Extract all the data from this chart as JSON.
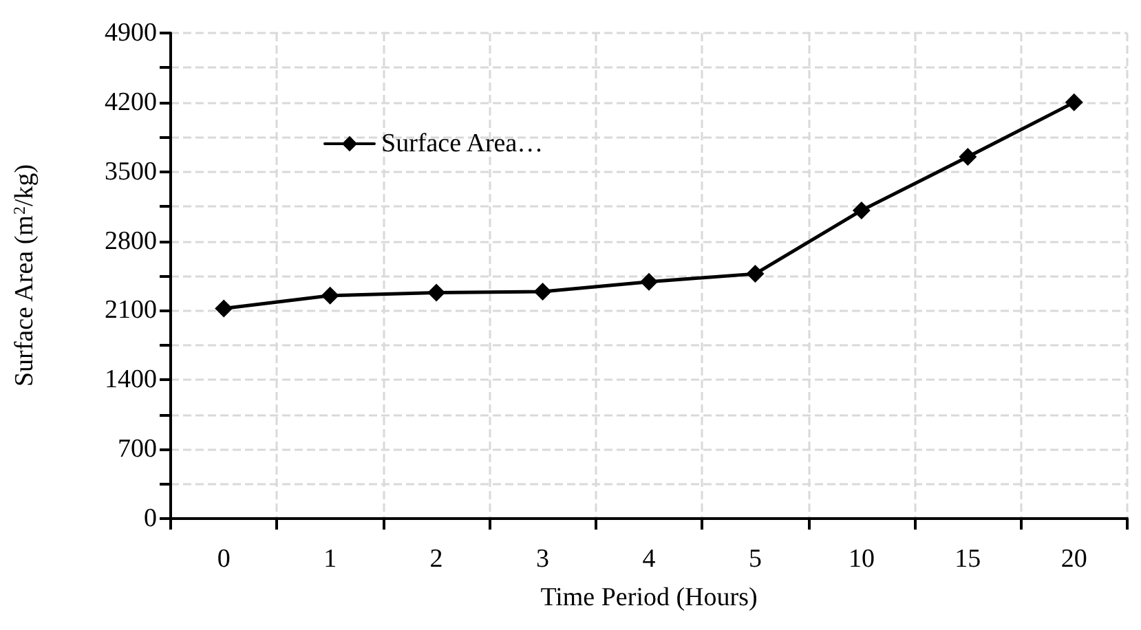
{
  "chart_data": {
    "type": "line",
    "xlabel": "Time Period (Hours)",
    "ylabel": "Surface Area (m$^{2}$/kg)",
    "categories": [
      "0",
      "1",
      "2",
      "3",
      "4",
      "5",
      "10",
      "15",
      "20"
    ],
    "series": [
      {
        "name": "Surface Area…",
        "color": "#000000",
        "values": [
          2120,
          2250,
          2280,
          2290,
          2390,
          2470,
          3110,
          3650,
          4200
        ]
      }
    ],
    "ylim": [
      0,
      4900
    ],
    "yticks": [
      0,
      {
        "value": 350,
        "label": null
      },
      700,
      {
        "value": 1050,
        "label": null
      },
      1400,
      {
        "value": 1750,
        "label": null
      },
      2100,
      {
        "value": 2450,
        "label": null
      },
      2800,
      {
        "value": 3150,
        "label": null
      },
      3500,
      {
        "value": 3850,
        "label": null
      },
      4200,
      {
        "value": 4550,
        "label": null
      },
      4900
    ],
    "grid": true,
    "legend": "top left",
    "marker": "diamond",
    "line_style": "solid"
  }
}
